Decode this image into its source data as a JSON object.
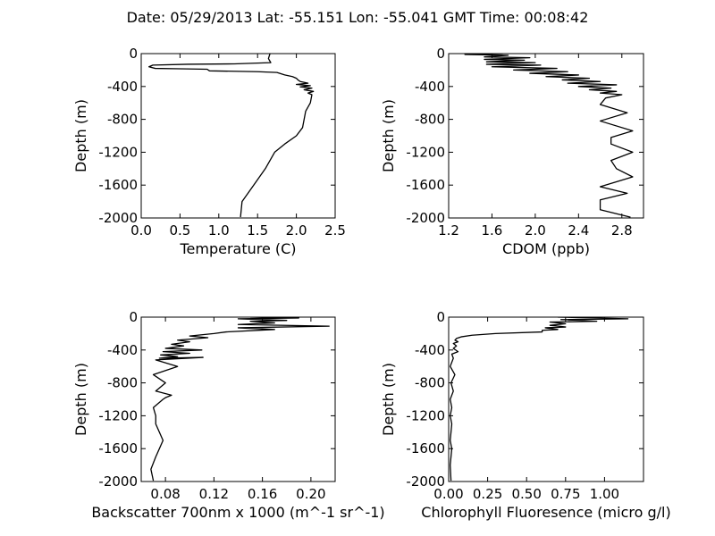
{
  "figure": {
    "title": "Date: 05/29/2013  Lat:  -55.151 Lon:  -55.041  GMT Time: 00:08:42"
  },
  "chart_data": [
    {
      "type": "line",
      "xlabel": "Temperature (C)",
      "ylabel": "Depth (m)",
      "xlim": [
        0.0,
        2.5
      ],
      "ylim": [
        -2000,
        0
      ],
      "xticks": [
        "0.0",
        "0.5",
        "1.0",
        "1.5",
        "2.0",
        "2.5"
      ],
      "yticks": [
        "0",
        "-400",
        "-800",
        "-1200",
        "-1600",
        "-2000"
      ],
      "xtick_values": [
        0.0,
        0.5,
        1.0,
        1.5,
        2.0,
        2.5
      ],
      "ytick_values": [
        0,
        -400,
        -800,
        -1200,
        -1600,
        -2000
      ],
      "grid": false,
      "series": [
        {
          "x": [
            1.66,
            1.64,
            1.67,
            1.2,
            0.6,
            0.15,
            0.1,
            0.18,
            0.5,
            0.85,
            0.88,
            1.5,
            1.75,
            1.85,
            1.95,
            2.0,
            2.02,
            2.05,
            2.15,
            2.0,
            2.18,
            2.05,
            2.2,
            2.1,
            2.22,
            2.15,
            2.2,
            2.18,
            2.12,
            2.08,
            2.0,
            1.85,
            1.72,
            1.6,
            1.45,
            1.3,
            1.28
          ],
          "y": [
            0,
            -60,
            -110,
            -125,
            -130,
            -140,
            -160,
            -180,
            -185,
            -190,
            -210,
            -220,
            -230,
            -260,
            -280,
            -300,
            -320,
            -340,
            -360,
            -375,
            -390,
            -405,
            -420,
            -440,
            -460,
            -480,
            -500,
            -600,
            -700,
            -900,
            -1000,
            -1100,
            -1200,
            -1400,
            -1600,
            -1800,
            -1990
          ]
        }
      ]
    },
    {
      "type": "line",
      "xlabel": "CDOM (ppb)",
      "ylabel": "Depth (m)",
      "xlim": [
        1.2,
        3.0
      ],
      "ylim": [
        -2000,
        0
      ],
      "xticks": [
        "1.2",
        "1.6",
        "2.0",
        "2.4",
        "2.8"
      ],
      "yticks": [
        "0",
        "-400",
        "-800",
        "-1200",
        "-1600",
        "-2000"
      ],
      "xtick_values": [
        1.2,
        1.6,
        2.0,
        2.4,
        2.8
      ],
      "ytick_values": [
        0,
        -400,
        -800,
        -1200,
        -1600,
        -2000
      ],
      "grid": false,
      "series": [
        {
          "x": [
            1.7,
            1.35,
            1.75,
            1.53,
            1.95,
            1.53,
            1.9,
            1.55,
            2.0,
            1.55,
            2.05,
            1.6,
            2.2,
            1.8,
            2.3,
            1.95,
            2.4,
            2.1,
            2.5,
            2.25,
            2.6,
            2.3,
            2.75,
            2.4,
            2.7,
            2.5,
            2.75,
            2.6,
            2.8,
            2.65,
            2.6,
            2.85,
            2.6,
            2.9,
            2.7,
            2.7,
            2.9,
            2.7,
            2.75,
            2.9,
            2.6,
            2.85,
            2.6,
            2.6,
            2.88
          ],
          "y": [
            0,
            -10,
            -20,
            -40,
            -50,
            -70,
            -80,
            -100,
            -110,
            -130,
            -140,
            -160,
            -180,
            -200,
            -220,
            -240,
            -260,
            -280,
            -300,
            -320,
            -340,
            -360,
            -380,
            -400,
            -420,
            -440,
            -460,
            -480,
            -500,
            -540,
            -620,
            -720,
            -820,
            -940,
            -1020,
            -1100,
            -1200,
            -1300,
            -1400,
            -1500,
            -1620,
            -1700,
            -1780,
            -1900,
            -1990
          ]
        }
      ]
    },
    {
      "type": "line",
      "xlabel": "Backscatter 700nm x 1000 (m^-1 sr^-1)",
      "ylabel": "Depth (m)",
      "xlim": [
        0.06,
        0.22
      ],
      "ylim": [
        -2000,
        0
      ],
      "xticks": [
        "0.08",
        "0.12",
        "0.16",
        "0.20"
      ],
      "yticks": [
        "0",
        "-400",
        "-800",
        "-1200",
        "-1600",
        "-2000"
      ],
      "xtick_values": [
        0.08,
        0.12,
        0.16,
        0.2
      ],
      "ytick_values": [
        0,
        -400,
        -800,
        -1200,
        -1600,
        -2000
      ],
      "grid": false,
      "series": [
        {
          "x": [
            0.15,
            0.19,
            0.14,
            0.18,
            0.15,
            0.17,
            0.14,
            0.215,
            0.14,
            0.17,
            0.13,
            0.12,
            0.1,
            0.115,
            0.09,
            0.1,
            0.085,
            0.095,
            0.08,
            0.11,
            0.078,
            0.1,
            0.076,
            0.09,
            0.075,
            0.111,
            0.072,
            0.09,
            0.07,
            0.08,
            0.072,
            0.085,
            0.08,
            0.078,
            0.07,
            0.072,
            0.072,
            0.078,
            0.072,
            0.068,
            0.07
          ],
          "y": [
            0,
            -10,
            -20,
            -40,
            -50,
            -70,
            -90,
            -110,
            -130,
            -150,
            -180,
            -200,
            -230,
            -250,
            -280,
            -300,
            -330,
            -350,
            -380,
            -400,
            -420,
            -440,
            -460,
            -480,
            -500,
            -490,
            -520,
            -600,
            -700,
            -800,
            -900,
            -950,
            -980,
            -1000,
            -1100,
            -1200,
            -1300,
            -1500,
            -1700,
            -1850,
            -1990
          ]
        }
      ]
    },
    {
      "type": "line",
      "xlabel": "Chlorophyll Fluoresence (micro g/l)",
      "ylabel": "Depth (m)",
      "xlim": [
        0.0,
        1.25
      ],
      "ylim": [
        -2000,
        0
      ],
      "xticks": [
        "0.00",
        "0.25",
        "0.50",
        "0.75",
        "1.00"
      ],
      "yticks": [
        "0",
        "-400",
        "-800",
        "-1200",
        "-1600",
        "-2000"
      ],
      "xtick_values": [
        0.0,
        0.25,
        0.5,
        0.75,
        1.0
      ],
      "ytick_values": [
        0,
        -400,
        -800,
        -1200,
        -1600,
        -2000
      ],
      "grid": false,
      "series": [
        {
          "x": [
            0.7,
            1.15,
            0.72,
            0.95,
            0.65,
            0.75,
            0.65,
            0.75,
            0.62,
            0.7,
            0.6,
            0.6,
            0.3,
            0.15,
            0.08,
            0.05,
            0.04,
            0.06,
            0.03,
            0.05,
            0.03,
            0.06,
            0.02,
            0.03,
            0.01,
            0.04,
            0.015,
            0.03,
            0.01,
            0.02,
            0.01,
            0.02,
            0.015,
            0.01,
            0.02,
            0.01,
            0.015
          ],
          "y": [
            0,
            -20,
            -30,
            -50,
            -60,
            -80,
            -100,
            -120,
            -130,
            -150,
            -160,
            -180,
            -200,
            -220,
            -240,
            -260,
            -280,
            -300,
            -320,
            -350,
            -380,
            -420,
            -450,
            -500,
            -600,
            -700,
            -800,
            -900,
            -1000,
            -1100,
            -1200,
            -1300,
            -1400,
            -1500,
            -1600,
            -1800,
            -1990
          ]
        }
      ]
    }
  ]
}
